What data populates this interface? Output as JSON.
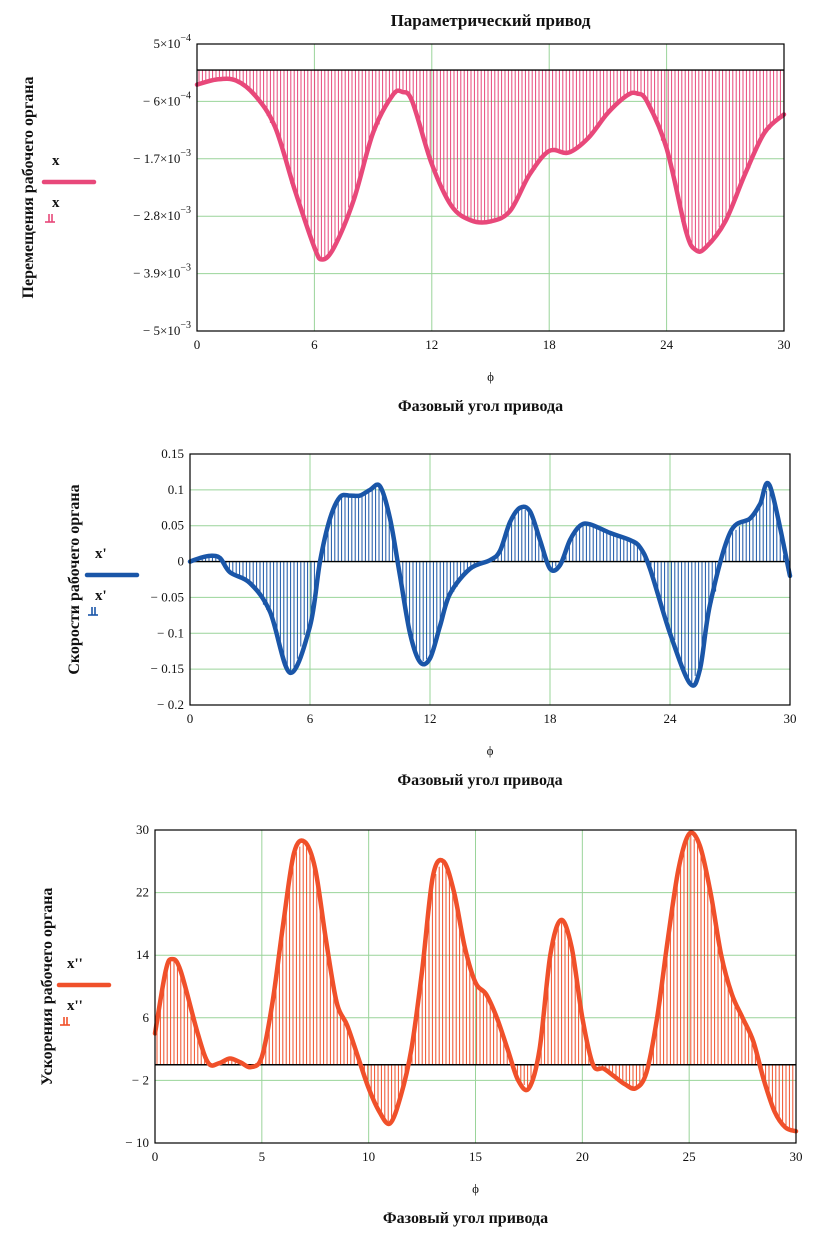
{
  "chart_data": [
    {
      "type": "line",
      "title": "Параметрический привод",
      "xvar": "ϕ",
      "xlabel": "Фазовый угол привода",
      "ylabel": "Перемещения рабочего органа",
      "color": "#e8487a",
      "stemColor": "#e8487a",
      "legend": [
        "x",
        "x"
      ],
      "xlim": [
        0,
        30
      ],
      "ylim": [
        -0.005,
        0.0005
      ],
      "xticks": [
        0,
        6,
        12,
        18,
        24,
        30
      ],
      "yticks": [
        0.0005,
        -0.0006,
        -0.0017,
        -0.0028,
        -0.0039,
        -0.005
      ],
      "ytick_labels": [
        {
          "m": "5×10",
          "e": "−4"
        },
        {
          "m": "− 6×10",
          "e": "−4"
        },
        {
          "m": "− 1.7×10",
          "e": "−3"
        },
        {
          "m": "− 2.8×10",
          "e": "−3"
        },
        {
          "m": "− 3.9×10",
          "e": "−3"
        },
        {
          "m": "− 5×10",
          "e": "−3"
        }
      ],
      "baseline": 0,
      "series": [
        {
          "name": "x",
          "x": [
            0,
            1,
            2,
            3,
            4,
            5,
            6,
            6.4,
            7,
            8,
            9,
            10,
            10.5,
            11,
            12,
            13,
            14,
            15,
            16,
            17,
            18,
            19,
            20,
            21,
            22,
            22.5,
            23,
            24,
            25,
            25.5,
            26,
            27,
            28,
            29,
            30
          ],
          "y": [
            -0.00028,
            -0.00018,
            -0.0002,
            -0.0005,
            -0.0011,
            -0.0023,
            -0.0034,
            -0.00363,
            -0.0034,
            -0.0025,
            -0.0012,
            -0.00048,
            -0.00042,
            -0.0006,
            -0.0018,
            -0.0026,
            -0.00288,
            -0.0029,
            -0.0027,
            -0.002,
            -0.00155,
            -0.00158,
            -0.0013,
            -0.00082,
            -0.00048,
            -0.00045,
            -0.0006,
            -0.0015,
            -0.0031,
            -0.00345,
            -0.0034,
            -0.0029,
            -0.002,
            -0.0012,
            -0.00085
          ]
        }
      ]
    },
    {
      "type": "line",
      "title": "",
      "xvar": "ϕ",
      "xlabel": "Фазовый угол привода",
      "ylabel": "Скорости рабочего органа",
      "color": "#1a56a8",
      "stemColor": "#1a56a8",
      "legend": [
        "x'",
        "x'"
      ],
      "xlim": [
        0,
        30
      ],
      "ylim": [
        -0.2,
        0.15
      ],
      "xticks": [
        0,
        6,
        12,
        18,
        24,
        30
      ],
      "yticks": [
        0.15,
        0.1,
        0.05,
        0,
        -0.05,
        -0.1,
        -0.15,
        -0.2
      ],
      "ytick_labels": [
        {
          "m": "0.15",
          "e": ""
        },
        {
          "m": "0.1",
          "e": ""
        },
        {
          "m": "0.05",
          "e": ""
        },
        {
          "m": "0",
          "e": ""
        },
        {
          "m": "− 0.05",
          "e": ""
        },
        {
          "m": "− 0.1",
          "e": ""
        },
        {
          "m": "− 0.15",
          "e": ""
        },
        {
          "m": "− 0.2",
          "e": ""
        }
      ],
      "baseline": 0,
      "series": [
        {
          "name": "x'",
          "x": [
            0,
            0.5,
            1,
            1.5,
            2,
            3,
            4,
            5,
            6,
            6.5,
            7,
            7.5,
            8,
            8.5,
            9,
            9.5,
            10,
            10.5,
            11,
            11.5,
            12,
            12.5,
            13,
            14,
            15,
            15.5,
            16,
            16.5,
            17,
            17.5,
            18,
            18.5,
            19,
            19.5,
            20,
            21,
            22,
            22.5,
            23,
            24,
            25,
            25.5,
            26,
            27,
            28,
            28.5,
            29,
            30
          ],
          "y": [
            0,
            0.005,
            0.008,
            0.005,
            -0.015,
            -0.03,
            -0.07,
            -0.155,
            -0.09,
            0,
            0.06,
            0.09,
            0.092,
            0.092,
            0.1,
            0.105,
            0.06,
            -0.02,
            -0.1,
            -0.14,
            -0.135,
            -0.09,
            -0.045,
            -0.01,
            0.002,
            0.015,
            0.055,
            0.075,
            0.07,
            0.03,
            -0.01,
            -0.005,
            0.03,
            0.05,
            0.052,
            0.04,
            0.03,
            0.02,
            -0.01,
            -0.1,
            -0.17,
            -0.15,
            -0.06,
            0.04,
            0.06,
            0.08,
            0.105,
            -0.02
          ]
        }
      ]
    },
    {
      "type": "line",
      "title": "",
      "xvar": "ϕ",
      "xlabel": "Фазовый угол привода",
      "ylabel": "Ускорения рабочего органа",
      "color": "#f0502a",
      "stemColor": "#f0502a",
      "legend": [
        "x''",
        "x''"
      ],
      "xlim": [
        0,
        30
      ],
      "ylim": [
        -10,
        30
      ],
      "xticks": [
        0,
        5,
        10,
        15,
        20,
        25,
        30
      ],
      "yticks": [
        30,
        22,
        14,
        6,
        -2,
        -10
      ],
      "ytick_labels": [
        {
          "m": "30",
          "e": ""
        },
        {
          "m": "22",
          "e": ""
        },
        {
          "m": "14",
          "e": ""
        },
        {
          "m": "6",
          "e": ""
        },
        {
          "m": "− 2",
          "e": ""
        },
        {
          "m": "− 10",
          "e": ""
        }
      ],
      "baseline": 0,
      "series": [
        {
          "name": "x''",
          "x": [
            0,
            0.5,
            0.8,
            1.2,
            2,
            2.5,
            3,
            3.5,
            4,
            4.5,
            5,
            5.5,
            6,
            6.5,
            7,
            7.5,
            8,
            8.5,
            9,
            9.5,
            10,
            10.5,
            11,
            11.5,
            12,
            12.5,
            13,
            13.5,
            14,
            14.5,
            15,
            15.5,
            16,
            16.5,
            17,
            17.5,
            18,
            18.5,
            19,
            19.5,
            20,
            20.5,
            21,
            21.5,
            22,
            22.5,
            23,
            23.5,
            24,
            24.5,
            25,
            25.5,
            26,
            26.5,
            27,
            27.5,
            28,
            28.5,
            29,
            29.5,
            30
          ],
          "y": [
            4,
            12,
            13.5,
            12,
            4,
            0.2,
            0.2,
            0.8,
            0.3,
            -0.3,
            1,
            8,
            18,
            27,
            28.5,
            25,
            16,
            8,
            5,
            1,
            -3,
            -6,
            -7.5,
            -4,
            2,
            12,
            24,
            26,
            22,
            15,
            10.5,
            9,
            6,
            2,
            -2,
            -3,
            2,
            14,
            18.5,
            15,
            6,
            0,
            -0.5,
            -1.5,
            -2.5,
            -3,
            -1,
            6,
            16,
            25,
            29.5,
            28,
            22,
            14,
            9,
            6,
            3,
            -2,
            -6,
            -8,
            -8.5
          ]
        }
      ]
    }
  ]
}
